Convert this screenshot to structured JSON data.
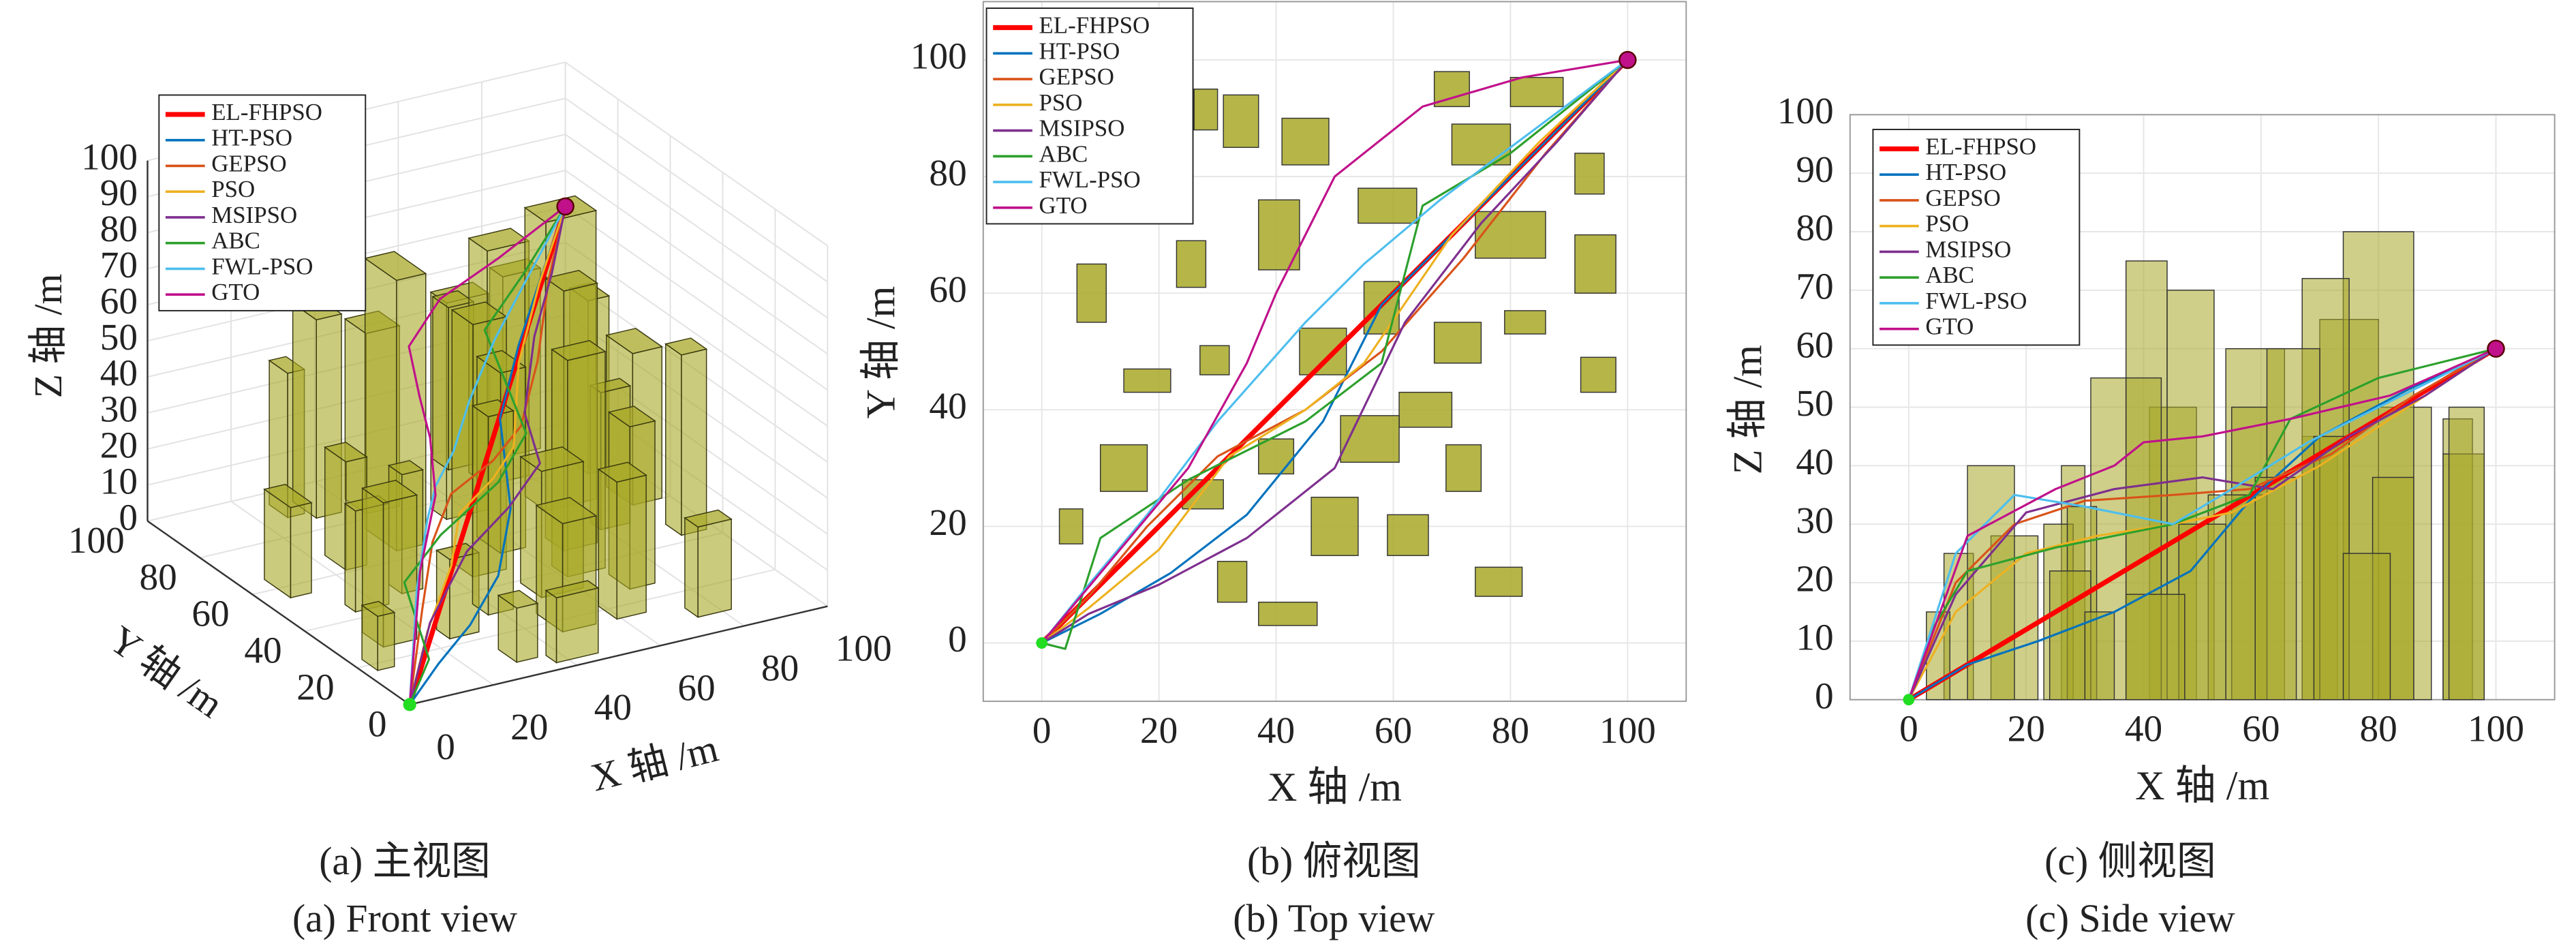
{
  "chart_data": [
    {
      "type": "3d",
      "caption": "(a) 主视图",
      "caption_en": "(a) Front view",
      "xlabel": "X 轴 /m",
      "ylabel": "Y 轴 /m",
      "zlabel": "Z 轴 /m",
      "xlim": [
        0,
        100
      ],
      "ylim": [
        0,
        100
      ],
      "zlim": [
        0,
        100
      ],
      "xticks": [
        0,
        20,
        40,
        60,
        80,
        100
      ],
      "yticks": [
        0,
        20,
        40,
        60,
        80,
        100
      ],
      "zticks": [
        0,
        10,
        20,
        30,
        40,
        50,
        60,
        70,
        80,
        90,
        100
      ],
      "grid": true,
      "legend": "upper left",
      "obstacle_color": "#a8a828",
      "series": [
        {
          "name": "EL-FHPSO",
          "color": "#ff0000",
          "x": [
            0,
            12.5,
            25,
            37.5,
            50,
            62.5,
            75,
            87.5,
            100
          ],
          "y": [
            0,
            12.5,
            25,
            37.5,
            50,
            62.5,
            75,
            87.5,
            100
          ],
          "z": [
            0,
            7.5,
            15,
            22.5,
            30,
            37.5,
            45,
            52.5,
            60
          ]
        },
        {
          "name": "HT-PSO",
          "color": "#0072bd",
          "x": [
            0,
            10,
            22,
            35,
            48,
            58,
            70,
            85,
            100
          ],
          "y": [
            0,
            5,
            12,
            22,
            38,
            58,
            70,
            85,
            100
          ],
          "z": [
            0,
            6,
            10,
            15,
            22,
            34,
            45,
            53,
            60
          ]
        },
        {
          "name": "GEPSO",
          "color": "#d95319",
          "x": [
            0,
            8,
            18,
            30,
            45,
            58,
            72,
            86,
            100
          ],
          "y": [
            0,
            8,
            20,
            32,
            40,
            50,
            66,
            84,
            100
          ],
          "z": [
            0,
            20,
            30,
            34,
            35,
            36,
            42,
            52,
            60
          ]
        },
        {
          "name": "PSO",
          "color": "#edb120",
          "x": [
            0,
            8,
            20,
            32,
            45,
            55,
            70,
            85,
            100
          ],
          "y": [
            0,
            6,
            16,
            32,
            40,
            48,
            70,
            86,
            100
          ],
          "z": [
            0,
            15,
            25,
            28,
            30,
            32,
            40,
            50,
            60
          ]
        },
        {
          "name": "MSIPSO",
          "color": "#7e2f8e",
          "x": [
            0,
            8,
            20,
            35,
            50,
            62,
            75,
            88,
            100
          ],
          "y": [
            0,
            5,
            10,
            18,
            30,
            55,
            72,
            86,
            100
          ],
          "z": [
            0,
            18,
            32,
            36,
            38,
            36,
            45,
            52,
            60
          ]
        },
        {
          "name": "ABC",
          "color": "#2ca02c",
          "x": [
            0,
            4,
            10,
            25,
            45,
            58,
            65,
            80,
            100
          ],
          "y": [
            0,
            -1,
            18,
            28,
            38,
            48,
            75,
            84,
            100
          ],
          "z": [
            0,
            12,
            22,
            26,
            30,
            35,
            48,
            55,
            60
          ]
        },
        {
          "name": "FWL-PSO",
          "color": "#4dbeee",
          "x": [
            0,
            8,
            18,
            30,
            45,
            55,
            68,
            84,
            100
          ],
          "y": [
            0,
            10,
            22,
            38,
            55,
            65,
            76,
            88,
            100
          ],
          "z": [
            0,
            25,
            35,
            33,
            30,
            36,
            44,
            52,
            60
          ]
        },
        {
          "name": "GTO",
          "color": "#c0108a",
          "x": [
            0,
            10,
            25,
            35,
            40,
            50,
            65,
            82,
            100
          ],
          "y": [
            0,
            12,
            30,
            48,
            60,
            80,
            92,
            97,
            100
          ],
          "z": [
            0,
            28,
            36,
            40,
            44,
            45,
            48,
            52,
            60
          ]
        }
      ],
      "obstacles": [
        {
          "x": 26,
          "y": 88,
          "width": 4,
          "depth": 7,
          "height": 40
        },
        {
          "x": 31,
          "y": 85,
          "width": 6,
          "depth": 9,
          "height": 55
        },
        {
          "x": 41,
          "y": 82,
          "width": 8,
          "depth": 8,
          "height": 50
        },
        {
          "x": 54,
          "y": 72,
          "width": 10,
          "depth": 6,
          "height": 60
        },
        {
          "x": 67,
          "y": 92,
          "width": 6,
          "depth": 6,
          "height": 45
        },
        {
          "x": 80,
          "y": 92,
          "width": 9,
          "depth": 5,
          "height": 50
        },
        {
          "x": 70,
          "y": 82,
          "width": 10,
          "depth": 7,
          "height": 65
        },
        {
          "x": 91,
          "y": 77,
          "width": 5,
          "depth": 7,
          "height": 48
        },
        {
          "x": 37,
          "y": 64,
          "width": 7,
          "depth": 12,
          "height": 75
        },
        {
          "x": 23,
          "y": 61,
          "width": 5,
          "depth": 8,
          "height": 30
        },
        {
          "x": 6,
          "y": 55,
          "width": 5,
          "depth": 10,
          "height": 25
        },
        {
          "x": 74,
          "y": 66,
          "width": 12,
          "depth": 8,
          "height": 80
        },
        {
          "x": 91,
          "y": 60,
          "width": 7,
          "depth": 10,
          "height": 42
        },
        {
          "x": 79,
          "y": 53,
          "width": 7,
          "depth": 4,
          "height": 38
        },
        {
          "x": 27,
          "y": 46,
          "width": 5,
          "depth": 5,
          "height": 33
        },
        {
          "x": 44,
          "y": 46,
          "width": 8,
          "depth": 8,
          "height": 70
        },
        {
          "x": 55,
          "y": 53,
          "width": 6,
          "depth": 9,
          "height": 50
        },
        {
          "x": 67,
          "y": 48,
          "width": 8,
          "depth": 7,
          "height": 72
        },
        {
          "x": 61,
          "y": 37,
          "width": 9,
          "depth": 6,
          "height": 60
        },
        {
          "x": 14,
          "y": 43,
          "width": 8,
          "depth": 4,
          "height": 28
        },
        {
          "x": 51,
          "y": 31,
          "width": 10,
          "depth": 8,
          "height": 35
        },
        {
          "x": 92,
          "y": 43,
          "width": 6,
          "depth": 6,
          "height": 50
        },
        {
          "x": 69,
          "y": 26,
          "width": 6,
          "depth": 8,
          "height": 45
        },
        {
          "x": 10,
          "y": 26,
          "width": 8,
          "depth": 8,
          "height": 40
        },
        {
          "x": 24,
          "y": 23,
          "width": 7,
          "depth": 5,
          "height": 22
        },
        {
          "x": 37,
          "y": 29,
          "width": 6,
          "depth": 6,
          "height": 55
        },
        {
          "x": 3,
          "y": 17,
          "width": 4,
          "depth": 6,
          "height": 15
        },
        {
          "x": 46,
          "y": 15,
          "width": 8,
          "depth": 10,
          "height": 30
        },
        {
          "x": 59,
          "y": 15,
          "width": 7,
          "depth": 7,
          "height": 38
        },
        {
          "x": 30,
          "y": 7,
          "width": 5,
          "depth": 7,
          "height": 15
        },
        {
          "x": 37,
          "y": 3,
          "width": 10,
          "depth": 4,
          "height": 18
        },
        {
          "x": 74,
          "y": 8,
          "width": 8,
          "depth": 5,
          "height": 25
        }
      ]
    },
    {
      "type": "top",
      "caption": "(b) 俯视图",
      "caption_en": "(b) Top view",
      "xlabel": "X 轴 /m",
      "ylabel": "Y 轴 /m",
      "xlim": [
        -10,
        110
      ],
      "ylim": [
        -10,
        110
      ],
      "xticks": [
        0,
        20,
        40,
        60,
        80,
        100
      ],
      "yticks": [
        0,
        20,
        40,
        60,
        80,
        100
      ],
      "grid": true,
      "legend": "upper left"
    },
    {
      "type": "side",
      "caption": "(c) 侧视图",
      "caption_en": "(c) Side view",
      "xlabel": "X 轴 /m",
      "ylabel": "Z 轴 /m",
      "xlim": [
        -10,
        110
      ],
      "ylim": [
        0,
        100
      ],
      "xticks": [
        0,
        20,
        40,
        60,
        80,
        100
      ],
      "yticks": [
        0,
        10,
        20,
        30,
        40,
        50,
        60,
        70,
        80,
        90,
        100
      ],
      "grid": true,
      "legend": "upper left"
    }
  ]
}
